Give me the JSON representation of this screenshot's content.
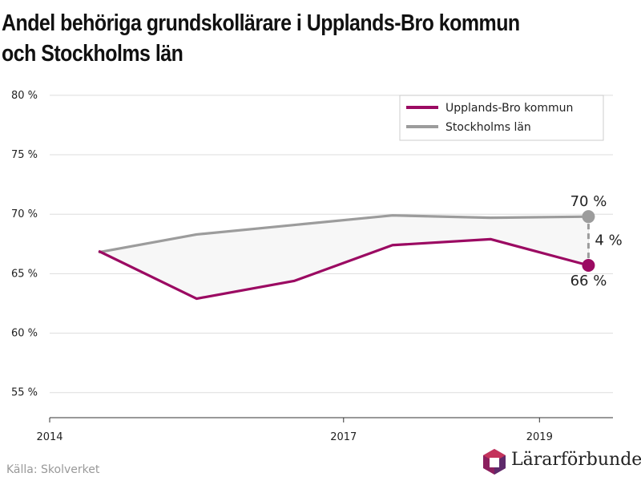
{
  "title": "Andel behöriga grundskollärare i Upplands-Bro kommun\noch Stockholms län",
  "source": "Källa: Skolverket",
  "logo": {
    "name": "Lärarförbundet",
    "colors": [
      "#8b1f5e",
      "#c4335c",
      "#5e2a6b"
    ]
  },
  "chart_data": {
    "type": "line",
    "title": "Andel behöriga grundskollärare i Upplands-Bro kommun och Stockholms län",
    "xlabel": "",
    "ylabel": "",
    "x_ticks": [
      2014,
      2017,
      2019
    ],
    "y_ticks": [
      "55 %",
      "60 %",
      "65 %",
      "70 %",
      "75 %",
      "80 %"
    ],
    "y_tick_values": [
      55,
      60,
      65,
      70,
      75,
      80
    ],
    "xlim": [
      2014,
      2019.75
    ],
    "ylim": [
      53.5,
      81
    ],
    "grid": "horizontal",
    "legend_position": "top-right",
    "x": [
      2014.5,
      2015.5,
      2016.5,
      2017.5,
      2018.5,
      2019.5
    ],
    "series": [
      {
        "name": "Upplands-Bro kommun",
        "color": "#9b0a62",
        "values": [
          66.9,
          62.9,
          64.4,
          67.4,
          67.9,
          65.7
        ]
      },
      {
        "name": "Stockholms län",
        "color": "#9c9c9c",
        "values": [
          66.8,
          68.3,
          69.1,
          69.9,
          69.7,
          69.8
        ]
      }
    ],
    "fill_between_color": "#f7f7f7",
    "annotations": {
      "end_value_top": "70 %",
      "end_value_bottom": "66 %",
      "gap": "4 %"
    }
  }
}
